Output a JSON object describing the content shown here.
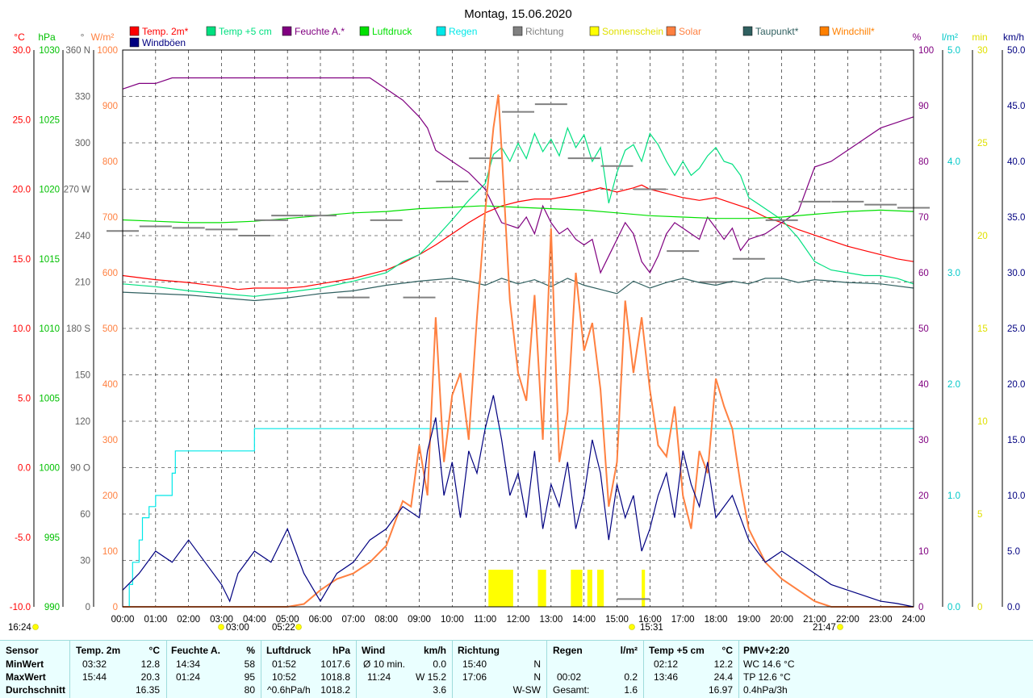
{
  "title": "Montag, 15.06.2020",
  "legend": [
    {
      "label": "Temp. 2m*",
      "color": "#ff0000"
    },
    {
      "label": "Temp +5 cm",
      "color": "#00e080"
    },
    {
      "label": "Feuchte A.*",
      "color": "#800080"
    },
    {
      "label": "Luftdruck",
      "color": "#00e000"
    },
    {
      "label": "Regen",
      "color": "#00e8e8"
    },
    {
      "label": "Richtung",
      "color": "#808080"
    },
    {
      "label": "Sonnenschein",
      "color": "#ffff00"
    },
    {
      "label": "Solar",
      "color": "#ff8040"
    },
    {
      "label": "Taupunkt*",
      "color": "#306060"
    },
    {
      "label": "Windchill*",
      "color": "#ff8000"
    },
    {
      "label": "Windböen",
      "color": "#000080"
    }
  ],
  "axes": {
    "temp": {
      "unit": "°C",
      "color": "#ff0000",
      "ticks": [
        "30.0",
        "25.0",
        "20.0",
        "15.0",
        "10.0",
        "5.0",
        "0.0",
        "-5.0",
        "-10.0"
      ],
      "range": [
        -10,
        30
      ]
    },
    "pressure": {
      "unit": "hPa",
      "color": "#00c000",
      "ticks": [
        "1030",
        "1025",
        "1020",
        "1015",
        "1010",
        "1005",
        "1000",
        "995",
        "990"
      ],
      "range": [
        990,
        1030
      ]
    },
    "direction": {
      "unit": "°",
      "color": "#606060",
      "ticks": [
        "360 N",
        "330",
        "300",
        "270 W",
        "240",
        "210",
        "180 S",
        "150",
        "120",
        "90 O",
        "60",
        "30",
        "0"
      ],
      "range": [
        0,
        360
      ]
    },
    "solar": {
      "unit": "W/m²",
      "color": "#ff8040",
      "ticks": [
        "1000",
        "900",
        "800",
        "700",
        "600",
        "500",
        "400",
        "300",
        "200",
        "100",
        "0"
      ],
      "range": [
        0,
        1000
      ]
    },
    "humidity": {
      "unit": "%",
      "color": "#800080",
      "ticks": [
        "100",
        "90",
        "80",
        "70",
        "60",
        "50",
        "40",
        "30",
        "20",
        "10",
        "0"
      ],
      "range": [
        0,
        100
      ]
    },
    "rain": {
      "unit": "l/m²",
      "color": "#00c8c8",
      "ticks": [
        "5.0",
        "4.0",
        "3.0",
        "2.0",
        "1.0",
        "0.0"
      ],
      "range": [
        0,
        5
      ]
    },
    "sunshine": {
      "unit": "min",
      "color": "#e0e000",
      "ticks": [
        "30",
        "25",
        "20",
        "15",
        "10",
        "5",
        "0"
      ],
      "range": [
        0,
        30
      ]
    },
    "wind": {
      "unit": "km/h",
      "color": "#000080",
      "ticks": [
        "50.0",
        "45.0",
        "40.0",
        "35.0",
        "30.0",
        "25.0",
        "20.0",
        "15.0",
        "10.0",
        "5.0",
        "0.0"
      ],
      "range": [
        0,
        50
      ]
    }
  },
  "x_ticks": [
    "00:00",
    "01:00",
    "02:00",
    "03:00",
    "04:00",
    "05:00",
    "06:00",
    "07:00",
    "08:00",
    "09:00",
    "10:00",
    "11:00",
    "12:00",
    "13:00",
    "14:00",
    "15:00",
    "16:00",
    "17:00",
    "18:00",
    "19:00",
    "20:00",
    "21:00",
    "22:00",
    "23:00",
    "24:00"
  ],
  "markers": {
    "left_time": "16:24",
    "sunrise": "03:00",
    "sunrise_alt": "05:22",
    "noon": "15:31",
    "sunset": "21:47"
  },
  "stats": {
    "sensor": {
      "header": "Sensor",
      "rows": [
        "MinWert",
        "MaxWert",
        "Durchschnitt"
      ]
    },
    "temp2m": {
      "header": "Temp. 2m",
      "unit": "°C",
      "min_time": "03:32",
      "min": "12.8",
      "max_time": "15:44",
      "max": "20.3",
      "avg": "16.35"
    },
    "humidity": {
      "header": "Feuchte A.",
      "unit": "%",
      "min_time": "14:34",
      "min": "58",
      "max_time": "01:24",
      "max": "95",
      "avg": "80"
    },
    "pressure": {
      "header": "Luftdruck",
      "unit": "hPa",
      "min_time": "01:52",
      "min": "1017.6",
      "max_time": "10:52",
      "max": "1018.8",
      "trend": "^0.6hPa/h",
      "avg": "1018.2"
    },
    "wind": {
      "header": "Wind",
      "unit": "km/h",
      "min_label": "Ø 10 min.",
      "min": "0.0",
      "max_time": "11:24",
      "max": "W 15.2",
      "avg": "3.6"
    },
    "direction": {
      "header": "Richtung",
      "min_time": "15:40",
      "min": "N",
      "max_time": "17:06",
      "max": "N",
      "avg": "W-SW"
    },
    "rain": {
      "header": "Regen",
      "unit": "l/m²",
      "max_time": "00:02",
      "max": "0.2",
      "total_label": "Gesamt:",
      "total": "1.6"
    },
    "temp5cm": {
      "header": "Temp +5 cm",
      "unit": "°C",
      "min_time": "02:12",
      "min": "12.2",
      "max_time": "13:46",
      "max": "24.4",
      "avg": "16.97"
    },
    "pmv": {
      "header": "PMV+2:20",
      "wc": "WC 14.6 °C",
      "tp": "TP 12.6 °C",
      "trend": "0.4hPa/3h"
    }
  },
  "chart_data": {
    "type": "line",
    "title": "Montag, 15.06.2020",
    "x_unit": "hour",
    "xlim": [
      0,
      24
    ],
    "grid": true,
    "legend_position": "top",
    "series": [
      {
        "name": "Temp. 2m*",
        "axis": "temp",
        "color": "#ff0000",
        "x": [
          0,
          1,
          2,
          3,
          3.5,
          4,
          5,
          5.5,
          6,
          7,
          8,
          8.5,
          9,
          9.5,
          10,
          10.5,
          11,
          11.5,
          12,
          12.5,
          13,
          13.5,
          14,
          14.5,
          15,
          15.5,
          15.75,
          16,
          16.5,
          17,
          17.5,
          18,
          18.5,
          19,
          19.5,
          20,
          20.5,
          21,
          21.5,
          22,
          22.5,
          23,
          23.5,
          24
        ],
        "y": [
          13.8,
          13.5,
          13.3,
          13.0,
          12.8,
          12.9,
          12.9,
          13.0,
          13.2,
          13.6,
          14.2,
          14.7,
          15.3,
          16.0,
          16.8,
          17.6,
          18.3,
          18.8,
          19.1,
          19.3,
          19.3,
          19.5,
          19.8,
          20.1,
          19.8,
          20.1,
          20.3,
          20.0,
          19.7,
          19.4,
          19.2,
          19.4,
          19.0,
          18.6,
          18.0,
          17.6,
          17.1,
          16.7,
          16.3,
          15.9,
          15.6,
          15.3,
          15.0,
          14.8
        ]
      },
      {
        "name": "Temp +5 cm",
        "axis": "temp",
        "color": "#00e080",
        "x": [
          0,
          1,
          2,
          3,
          4,
          5,
          6,
          7,
          8,
          8.5,
          9,
          9.5,
          10,
          10.5,
          11,
          11.25,
          11.5,
          11.75,
          12,
          12.25,
          12.5,
          12.75,
          13,
          13.25,
          13.5,
          13.75,
          14,
          14.25,
          14.5,
          14.75,
          15,
          15.25,
          15.5,
          15.75,
          16,
          16.25,
          16.5,
          16.75,
          17,
          17.25,
          17.5,
          17.75,
          18,
          18.25,
          18.5,
          18.75,
          19,
          19.5,
          20,
          20.5,
          21,
          21.5,
          22,
          22.5,
          23,
          23.5,
          24
        ],
        "y": [
          13.2,
          13.0,
          12.7,
          12.5,
          12.3,
          12.6,
          12.9,
          13.4,
          14.0,
          14.8,
          15.3,
          16.5,
          17.8,
          19.2,
          20.4,
          22.5,
          23.0,
          22.0,
          23.3,
          22.2,
          24.0,
          22.7,
          23.6,
          22.4,
          24.4,
          23.0,
          23.9,
          22.0,
          23.0,
          19.0,
          21.2,
          22.8,
          23.2,
          22.0,
          24.0,
          23.2,
          22.0,
          21.0,
          22.0,
          21.0,
          21.5,
          22.4,
          23.0,
          22.0,
          21.8,
          21.0,
          19.4,
          18.6,
          17.8,
          16.5,
          14.8,
          14.2,
          14.0,
          13.8,
          13.8,
          13.6,
          13.2
        ]
      },
      {
        "name": "Feuchte A.*",
        "axis": "humidity",
        "color": "#800080",
        "x": [
          0,
          0.5,
          1,
          1.5,
          2,
          3,
          4,
          5,
          6,
          7,
          7.5,
          8,
          8.5,
          9,
          9.25,
          9.5,
          10,
          10.5,
          11,
          11.5,
          12,
          12.25,
          12.5,
          12.75,
          13,
          13.25,
          13.5,
          13.75,
          14,
          14.25,
          14.5,
          14.75,
          15,
          15.25,
          15.5,
          15.75,
          16,
          16.25,
          16.5,
          16.75,
          17,
          17.25,
          17.5,
          17.75,
          18,
          18.25,
          18.5,
          18.75,
          19,
          19.5,
          20,
          20.5,
          21,
          21.5,
          22,
          22.5,
          23,
          23.5,
          24
        ],
        "y": [
          93,
          94,
          94,
          95,
          95,
          95,
          95,
          95,
          95,
          95,
          95,
          93,
          91,
          88,
          86,
          82,
          80,
          78,
          75,
          69,
          68,
          70,
          67,
          72,
          69,
          67,
          68,
          66,
          65,
          66,
          60,
          63,
          66,
          69,
          67,
          62,
          60,
          63,
          67,
          69,
          68,
          67,
          66,
          70,
          68,
          66,
          68,
          64,
          66,
          67,
          69,
          71,
          79,
          80,
          82,
          84,
          86,
          87,
          88
        ]
      },
      {
        "name": "Luftdruck",
        "axis": "pressure",
        "color": "#00e000",
        "x": [
          0,
          1,
          2,
          3,
          4,
          5,
          6,
          7,
          8,
          9,
          10,
          10.87,
          11,
          12,
          13,
          14,
          15,
          16,
          17,
          18,
          19,
          20,
          21,
          22,
          23,
          24
        ],
        "y": [
          1017.8,
          1017.7,
          1017.6,
          1017.6,
          1017.7,
          1017.9,
          1018.1,
          1018.3,
          1018.4,
          1018.6,
          1018.7,
          1018.8,
          1018.8,
          1018.7,
          1018.6,
          1018.5,
          1018.3,
          1018.1,
          1018.0,
          1017.9,
          1017.9,
          1018.0,
          1018.2,
          1018.4,
          1018.5,
          1018.4
        ]
      },
      {
        "name": "Regen",
        "axis": "rain",
        "color": "#00e8e8",
        "x": [
          0,
          0.2,
          0.3,
          0.5,
          0.6,
          0.8,
          1,
          1.3,
          1.5,
          1.6,
          2,
          3.5,
          3.9,
          4,
          24
        ],
        "y": [
          0,
          0.2,
          0.4,
          0.6,
          0.8,
          0.9,
          1.0,
          1.0,
          1.2,
          1.4,
          1.4,
          1.4,
          1.4,
          1.6,
          1.6
        ]
      },
      {
        "name": "Richtung",
        "axis": "direction",
        "color": "#808080",
        "x": [
          0,
          1,
          2,
          3,
          4,
          4.5,
          5,
          6,
          7,
          8,
          9,
          10,
          11,
          12,
          13,
          14,
          15,
          15.5,
          16,
          17,
          18,
          19,
          20,
          21,
          22,
          23,
          24
        ],
        "y": [
          243,
          246,
          245,
          244,
          240,
          250,
          253,
          253,
          200,
          250,
          200,
          275,
          290,
          320,
          325,
          290,
          285,
          5,
          270,
          230,
          210,
          225,
          250,
          262,
          262,
          260,
          258
        ]
      },
      {
        "name": "Taupunkt*",
        "axis": "temp",
        "color": "#306060",
        "x": [
          0,
          1,
          2,
          3,
          4,
          5,
          6,
          7,
          8,
          9,
          10,
          10.5,
          11,
          11.5,
          12,
          12.5,
          13,
          13.5,
          14,
          14.5,
          15,
          15.5,
          16,
          16.5,
          17,
          17.5,
          18,
          18.5,
          19,
          19.5,
          20,
          20.5,
          21,
          22,
          23,
          24
        ],
        "y": [
          12.6,
          12.5,
          12.4,
          12.2,
          12.0,
          12.2,
          12.5,
          12.7,
          13.1,
          13.4,
          13.6,
          13.4,
          13.1,
          13.6,
          13.2,
          13.5,
          13.0,
          13.6,
          13.1,
          12.8,
          12.5,
          13.4,
          12.9,
          13.3,
          13.6,
          13.3,
          13.1,
          13.4,
          13.2,
          13.6,
          13.6,
          13.3,
          13.5,
          13.3,
          13.2,
          12.9
        ]
      },
      {
        "name": "Solar",
        "axis": "solar",
        "color": "#ff8040",
        "x": [
          0,
          5,
          5.5,
          6,
          6.5,
          7,
          7.5,
          8,
          8.25,
          8.5,
          8.75,
          9,
          9.25,
          9.5,
          9.75,
          10,
          10.25,
          10.5,
          10.75,
          11,
          11.25,
          11.4,
          11.5,
          11.75,
          12,
          12.25,
          12.5,
          12.75,
          13,
          13.25,
          13.5,
          13.75,
          14,
          14.25,
          14.5,
          14.75,
          15,
          15.25,
          15.5,
          15.75,
          16,
          16.25,
          16.5,
          16.75,
          17,
          17.25,
          17.5,
          17.75,
          18,
          18.25,
          18.5,
          18.75,
          19,
          19.5,
          20,
          20.5,
          21,
          21.5,
          22,
          24
        ],
        "y": [
          0,
          0,
          5,
          30,
          50,
          60,
          80,
          110,
          150,
          190,
          180,
          290,
          200,
          520,
          260,
          380,
          420,
          300,
          520,
          710,
          860,
          920,
          820,
          550,
          420,
          370,
          560,
          300,
          680,
          260,
          350,
          600,
          460,
          510,
          390,
          180,
          260,
          550,
          420,
          520,
          390,
          290,
          270,
          360,
          200,
          140,
          280,
          240,
          410,
          360,
          320,
          220,
          140,
          80,
          50,
          30,
          10,
          0,
          0,
          0
        ]
      },
      {
        "name": "Windböen",
        "axis": "wind",
        "color": "#000080",
        "x": [
          0,
          0.5,
          1,
          1.5,
          2,
          2.5,
          3,
          3.25,
          3.5,
          4,
          4.5,
          5,
          5.5,
          6,
          6.5,
          7,
          7.5,
          8,
          8.5,
          9,
          9.25,
          9.5,
          9.75,
          10,
          10.25,
          10.5,
          10.75,
          11,
          11.25,
          11.5,
          11.75,
          12,
          12.25,
          12.5,
          12.75,
          13,
          13.25,
          13.5,
          13.75,
          14,
          14.25,
          14.5,
          14.75,
          15,
          15.25,
          15.5,
          15.75,
          16,
          16.25,
          16.5,
          16.75,
          17,
          17.25,
          17.5,
          17.75,
          18,
          18.5,
          19,
          19.5,
          20,
          20.5,
          21,
          21.5,
          22,
          22.5,
          23,
          23.5,
          24
        ],
        "y": [
          1.5,
          3,
          5,
          4,
          6,
          4,
          2,
          0.5,
          3,
          5,
          4,
          7,
          3,
          0.5,
          3,
          4,
          6,
          7,
          9,
          8,
          14,
          17,
          10,
          13,
          8,
          14,
          12,
          16,
          19,
          15,
          10,
          12,
          8,
          14,
          7,
          11,
          9,
          13,
          7,
          10,
          15,
          12,
          6,
          11,
          8,
          10,
          5,
          7,
          10,
          12,
          8,
          14,
          11,
          9,
          13,
          8,
          10,
          6,
          4,
          5,
          4,
          3,
          2,
          1.5,
          1,
          0.5,
          0.3,
          0
        ]
      }
    ],
    "sunshine_bars": {
      "axis": "sunshine",
      "color": "#ffff00",
      "intervals": [
        [
          11.1,
          11.85,
          2
        ],
        [
          12.6,
          12.85,
          2
        ],
        [
          13.6,
          13.95,
          2
        ],
        [
          14.1,
          14.25,
          2
        ],
        [
          14.4,
          14.6,
          2
        ],
        [
          15.75,
          15.85,
          2
        ]
      ]
    }
  }
}
